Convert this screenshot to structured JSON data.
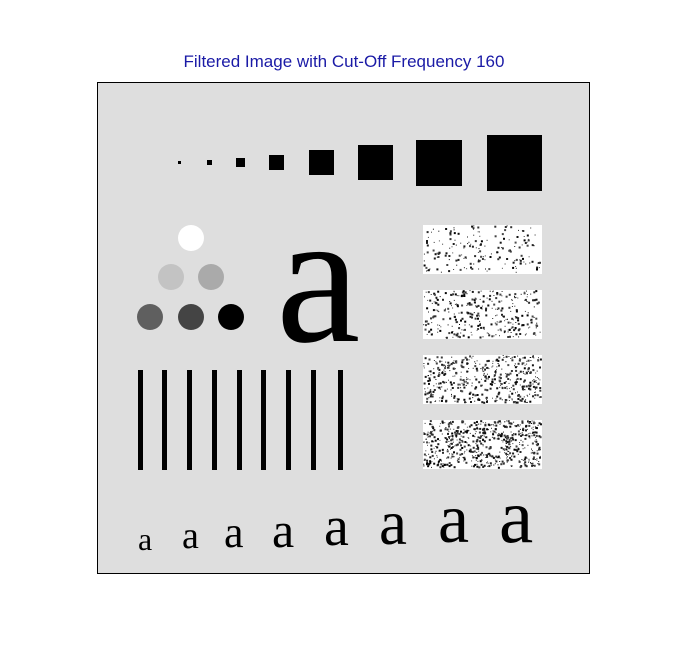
{
  "title": "Filtered Image with Cut-Off Frequency 160",
  "big_letter": "a",
  "letter_row": [
    "a",
    "a",
    "a",
    "a",
    "a",
    "a",
    "a",
    "a"
  ],
  "colors": {
    "title": "#1a1aa6",
    "background": "#dedede",
    "foreground": "#000000",
    "circle_white": "#ffffff",
    "circle_light_gray": "#c3c3c3",
    "circle_mid_gray": "#aaaaaa",
    "circle_dark_gray": "#5f5f5f",
    "circle_darker_gray": "#444444",
    "circle_black": "#000000"
  }
}
